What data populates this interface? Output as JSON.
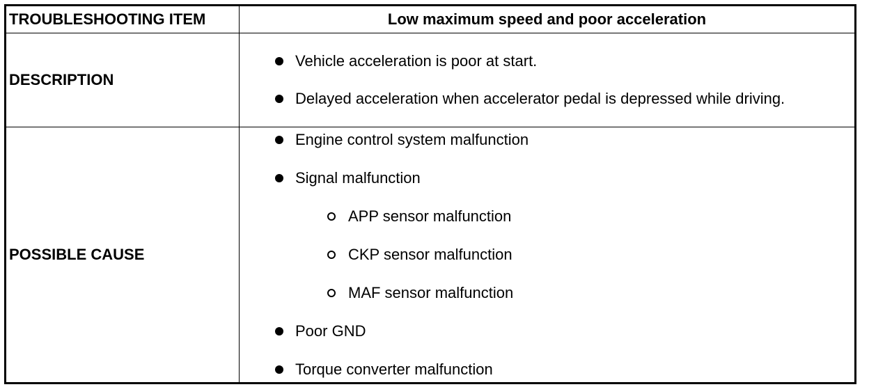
{
  "header": {
    "item_label": "TROUBLESHOOTING ITEM",
    "item_value": "Low maximum speed and poor acceleration"
  },
  "description": {
    "label": "DESCRIPTION",
    "items": [
      "Vehicle acceleration is poor at start.",
      "Delayed acceleration when accelerator pedal is depressed while driving."
    ]
  },
  "possible_cause": {
    "label": "POSSIBLE CAUSE",
    "items": [
      {
        "text": "Engine control system malfunction",
        "level": 1
      },
      {
        "text": "Signal malfunction",
        "level": 1
      },
      {
        "text": "APP sensor malfunction",
        "level": 2
      },
      {
        "text": "CKP sensor malfunction",
        "level": 2
      },
      {
        "text": "MAF sensor malfunction",
        "level": 2
      },
      {
        "text": "Poor GND",
        "level": 1
      },
      {
        "text": "Torque converter malfunction",
        "level": 1
      }
    ]
  },
  "icons": {
    "level1": "filled-circle-bullet-icon",
    "level2": "hollow-circle-bullet-icon"
  }
}
